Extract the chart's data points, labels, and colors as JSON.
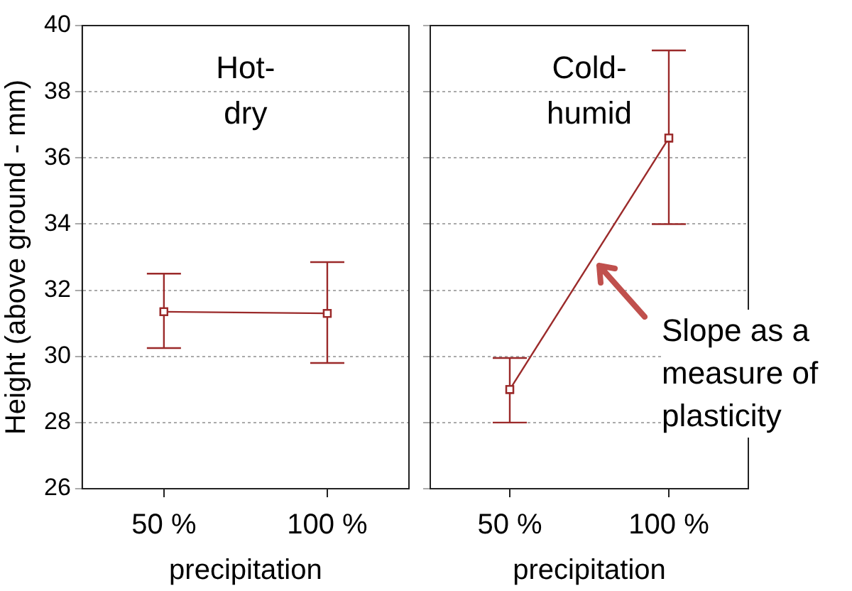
{
  "chart_data": [
    {
      "type": "line",
      "categories": [
        "50 %",
        "100 %"
      ],
      "xlabel": "precipitation",
      "ylabel": "Height (above ground - mm)",
      "ylim": [
        26,
        40
      ],
      "yticks": [
        26,
        28,
        30,
        32,
        34,
        36,
        38,
        40
      ],
      "grid": "y",
      "marker": "square",
      "annotations": [
        "Hot-\ndry"
      ],
      "series": [
        {
          "color": "#9b2a2a",
          "values": [
            31.35,
            31.3
          ],
          "errors": [
            [
              30.25,
              32.5
            ],
            [
              29.8,
              32.85
            ]
          ]
        }
      ]
    },
    {
      "type": "line",
      "categories": [
        "50 %",
        "100 %"
      ],
      "xlabel": "precipitation",
      "ylim": [
        26,
        40
      ],
      "yticks": [
        26,
        28,
        30,
        32,
        34,
        36,
        38,
        40
      ],
      "grid": "y",
      "marker": "square",
      "tick_labels": "x",
      "annotations": [
        "Cold-\nhumid",
        "Slope  as a measure of plasticity"
      ],
      "series": [
        {
          "color": "#9b2a2a",
          "values": [
            29.0,
            36.6
          ],
          "errors": [
            [
              28.0,
              29.95
            ],
            [
              34.0,
              39.25
            ]
          ]
        }
      ]
    }
  ]
}
